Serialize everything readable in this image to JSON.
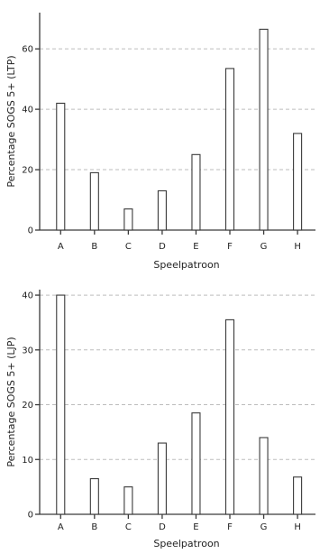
{
  "chart_data": [
    {
      "type": "bar",
      "categories": [
        "A",
        "B",
        "C",
        "D",
        "E",
        "F",
        "G",
        "H"
      ],
      "values": [
        42,
        19,
        7,
        13,
        25,
        53.5,
        66.5,
        32
      ],
      "xlabel": "Speelpatroon",
      "ylabel": "Percentage SOGS 5+ (LTP)",
      "ylim": [
        0,
        72
      ],
      "yticks": [
        0,
        20,
        40,
        60
      ],
      "ytick_labels": [
        "0",
        "20",
        "40",
        "60"
      ],
      "grid": true
    },
    {
      "type": "bar",
      "categories": [
        "A",
        "B",
        "C",
        "D",
        "E",
        "F",
        "G",
        "H"
      ],
      "values": [
        40,
        6.5,
        5,
        13,
        18.5,
        35.5,
        14,
        6.8
      ],
      "xlabel": "Speelpatroon",
      "ylabel": "Percentage SOGS 5+ (LJP)",
      "ylim": [
        0,
        41
      ],
      "yticks": [
        0,
        10,
        20,
        30,
        40
      ],
      "ytick_labels": [
        "0",
        "10",
        "20",
        "30",
        "40"
      ],
      "grid": true
    }
  ]
}
